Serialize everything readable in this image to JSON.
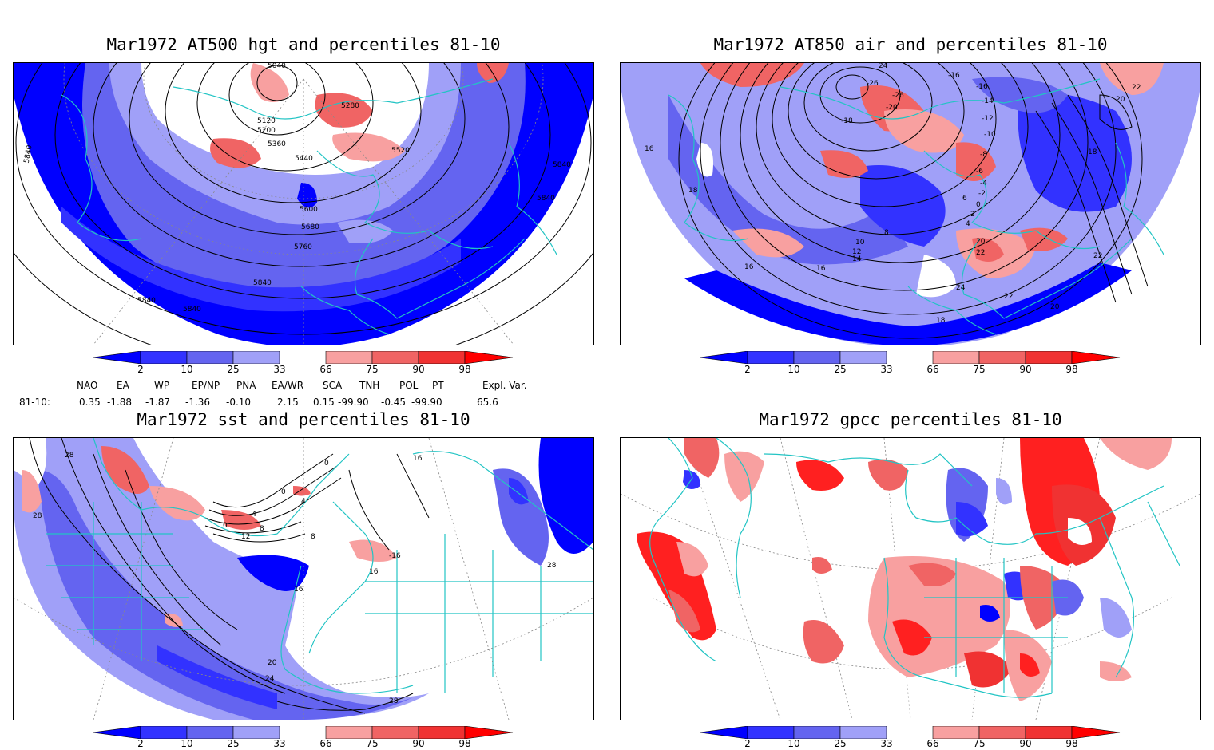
{
  "panels": [
    {
      "title": "Mar1972 AT500 hgt and percentiles 81-10",
      "contour_labels": [
        "5040",
        "5120",
        "5200",
        "5280",
        "5360",
        "5440",
        "5520",
        "5600",
        "5680",
        "5760",
        "5840",
        "5840",
        "5840",
        "5840",
        "5840",
        "5840"
      ]
    },
    {
      "title": "Mar1972 AT850 air and percentiles 81-10",
      "contour_labels": [
        "24",
        "-26",
        "-26",
        "-18",
        "-20",
        "-16",
        "-16",
        "-14",
        "-12",
        "-10",
        "-8",
        "-6",
        "-4",
        "-2",
        "0",
        "2",
        "4",
        "6",
        "8",
        "10",
        "12",
        "14",
        "16",
        "16",
        "18",
        "18",
        "18",
        "20",
        "20",
        "20",
        "22",
        "22",
        "22",
        "22",
        "24",
        "16"
      ]
    },
    {
      "title": "Mar1972 sst and percentiles 81-10",
      "contour_labels": [
        "28",
        "28",
        "0",
        "0",
        "4",
        "8",
        "-4",
        "0",
        "12",
        "16",
        "16",
        "20",
        "24",
        "28",
        "28",
        "-16",
        "16",
        "8"
      ]
    },
    {
      "title": "Mar1972 gpcc percentiles 81-10",
      "contour_labels": []
    }
  ],
  "colorbar": {
    "labels": [
      "2",
      "10",
      "25",
      "33",
      "66",
      "75",
      "90",
      "98"
    ],
    "colors": {
      "c2": "#0000ff",
      "c10": "#3232ff",
      "c25": "#6464f0",
      "c33": "#a0a0f8",
      "c66": "#f8a0a0",
      "c75": "#f06464",
      "c90": "#f03232",
      "c98": "#ff0000",
      "coast": "#22c4c4"
    }
  },
  "indices": {
    "headers": [
      "NAO",
      "EA",
      "WP",
      "EP/NP",
      "PNA",
      "EA/WR",
      "SCA",
      "TNH",
      "POL",
      "PT",
      "Expl. Var."
    ],
    "row_label": "81-10:",
    "values": [
      "0.35",
      "-1.88",
      "-1.87",
      "-1.36",
      "-0.10",
      "2.15",
      "0.15",
      "-99.90",
      "-0.45",
      "-99.90",
      "65.6"
    ]
  }
}
